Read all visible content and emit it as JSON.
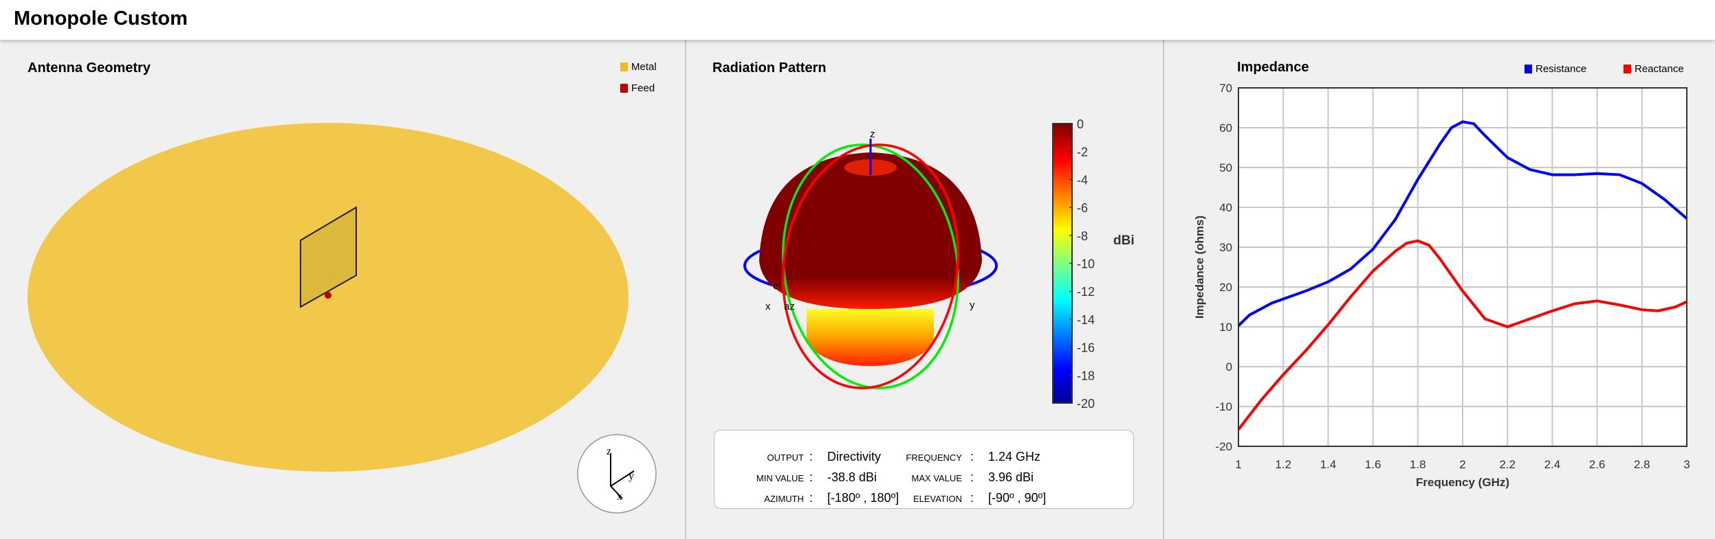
{
  "app": {
    "title": "Monopole Custom"
  },
  "geometry": {
    "title": "Antenna Geometry",
    "legend": [
      {
        "label": "Metal",
        "color": "#f0b92a"
      },
      {
        "label": "Feed",
        "color": "#c00000"
      }
    ],
    "axes": {
      "x": "x",
      "y": "y",
      "z": "z"
    }
  },
  "pattern": {
    "title": "Radiation Pattern",
    "axis_labels": {
      "x": "x",
      "y": "y",
      "z": "z",
      "az": "az",
      "el": "el"
    },
    "colorbar": {
      "label": "dBi",
      "ticks": [
        "0",
        "-2",
        "-4",
        "-6",
        "-8",
        "-10",
        "-12",
        "-14",
        "-16",
        "-18",
        "-20"
      ],
      "colormap": "jet"
    },
    "info": {
      "output_key": "OUTPUT",
      "output": "Directivity",
      "frequency_key": "FREQUENCY",
      "frequency": "1.24 GHz",
      "min_key": "MIN VALUE",
      "min": "-38.8 dBi",
      "max_key": "MAX VALUE",
      "max": "3.96 dBi",
      "az_key": "AZIMUTH",
      "az": "[-180º , 180º]",
      "el_key": "ELEVATION",
      "el": "[-90º , 90º]"
    }
  },
  "chart_data": {
    "type": "line",
    "title": "Impedance",
    "xlabel": "Frequency (GHz)",
    "ylabel": "Impedance (ohms)",
    "xlim": [
      1,
      3
    ],
    "ylim": [
      -20,
      70
    ],
    "grid": true,
    "legend_placement": "top-right",
    "xticks": [
      "1",
      "1.2",
      "1.4",
      "1.6",
      "1.8",
      "2",
      "2.2",
      "2.4",
      "2.6",
      "2.8",
      "3"
    ],
    "yticks": [
      "-20",
      "-10",
      "0",
      "10",
      "20",
      "30",
      "40",
      "50",
      "60",
      "70"
    ],
    "series": [
      {
        "name": "Resistance",
        "color": "#0000ff",
        "x": [
          1.0,
          1.05,
          1.15,
          1.3,
          1.4,
          1.5,
          1.6,
          1.7,
          1.8,
          1.9,
          1.95,
          2.0,
          2.05,
          2.1,
          2.2,
          2.3,
          2.4,
          2.5,
          2.6,
          2.7,
          2.8,
          2.9,
          3.0
        ],
        "y": [
          10.3,
          13,
          16,
          19,
          21.3,
          24.5,
          29.5,
          37,
          47,
          56,
          60,
          61.5,
          61,
          58,
          52.5,
          49.5,
          48.2,
          48.2,
          48.5,
          48.2,
          46,
          42,
          37.2
        ]
      },
      {
        "name": "Reactance",
        "color": "#ff0000",
        "x": [
          1.0,
          1.1,
          1.2,
          1.3,
          1.4,
          1.5,
          1.6,
          1.7,
          1.75,
          1.8,
          1.85,
          1.9,
          2.0,
          2.1,
          2.2,
          2.3,
          2.4,
          2.5,
          2.6,
          2.7,
          2.8,
          2.87,
          2.95,
          3.0
        ],
        "y": [
          -15.8,
          -8.5,
          -2,
          4,
          10.5,
          17.5,
          24,
          29,
          31,
          31.6,
          30.5,
          27,
          19,
          12,
          10,
          12,
          14,
          15.8,
          16.5,
          15.5,
          14.3,
          14,
          15,
          16.3
        ]
      }
    ]
  }
}
